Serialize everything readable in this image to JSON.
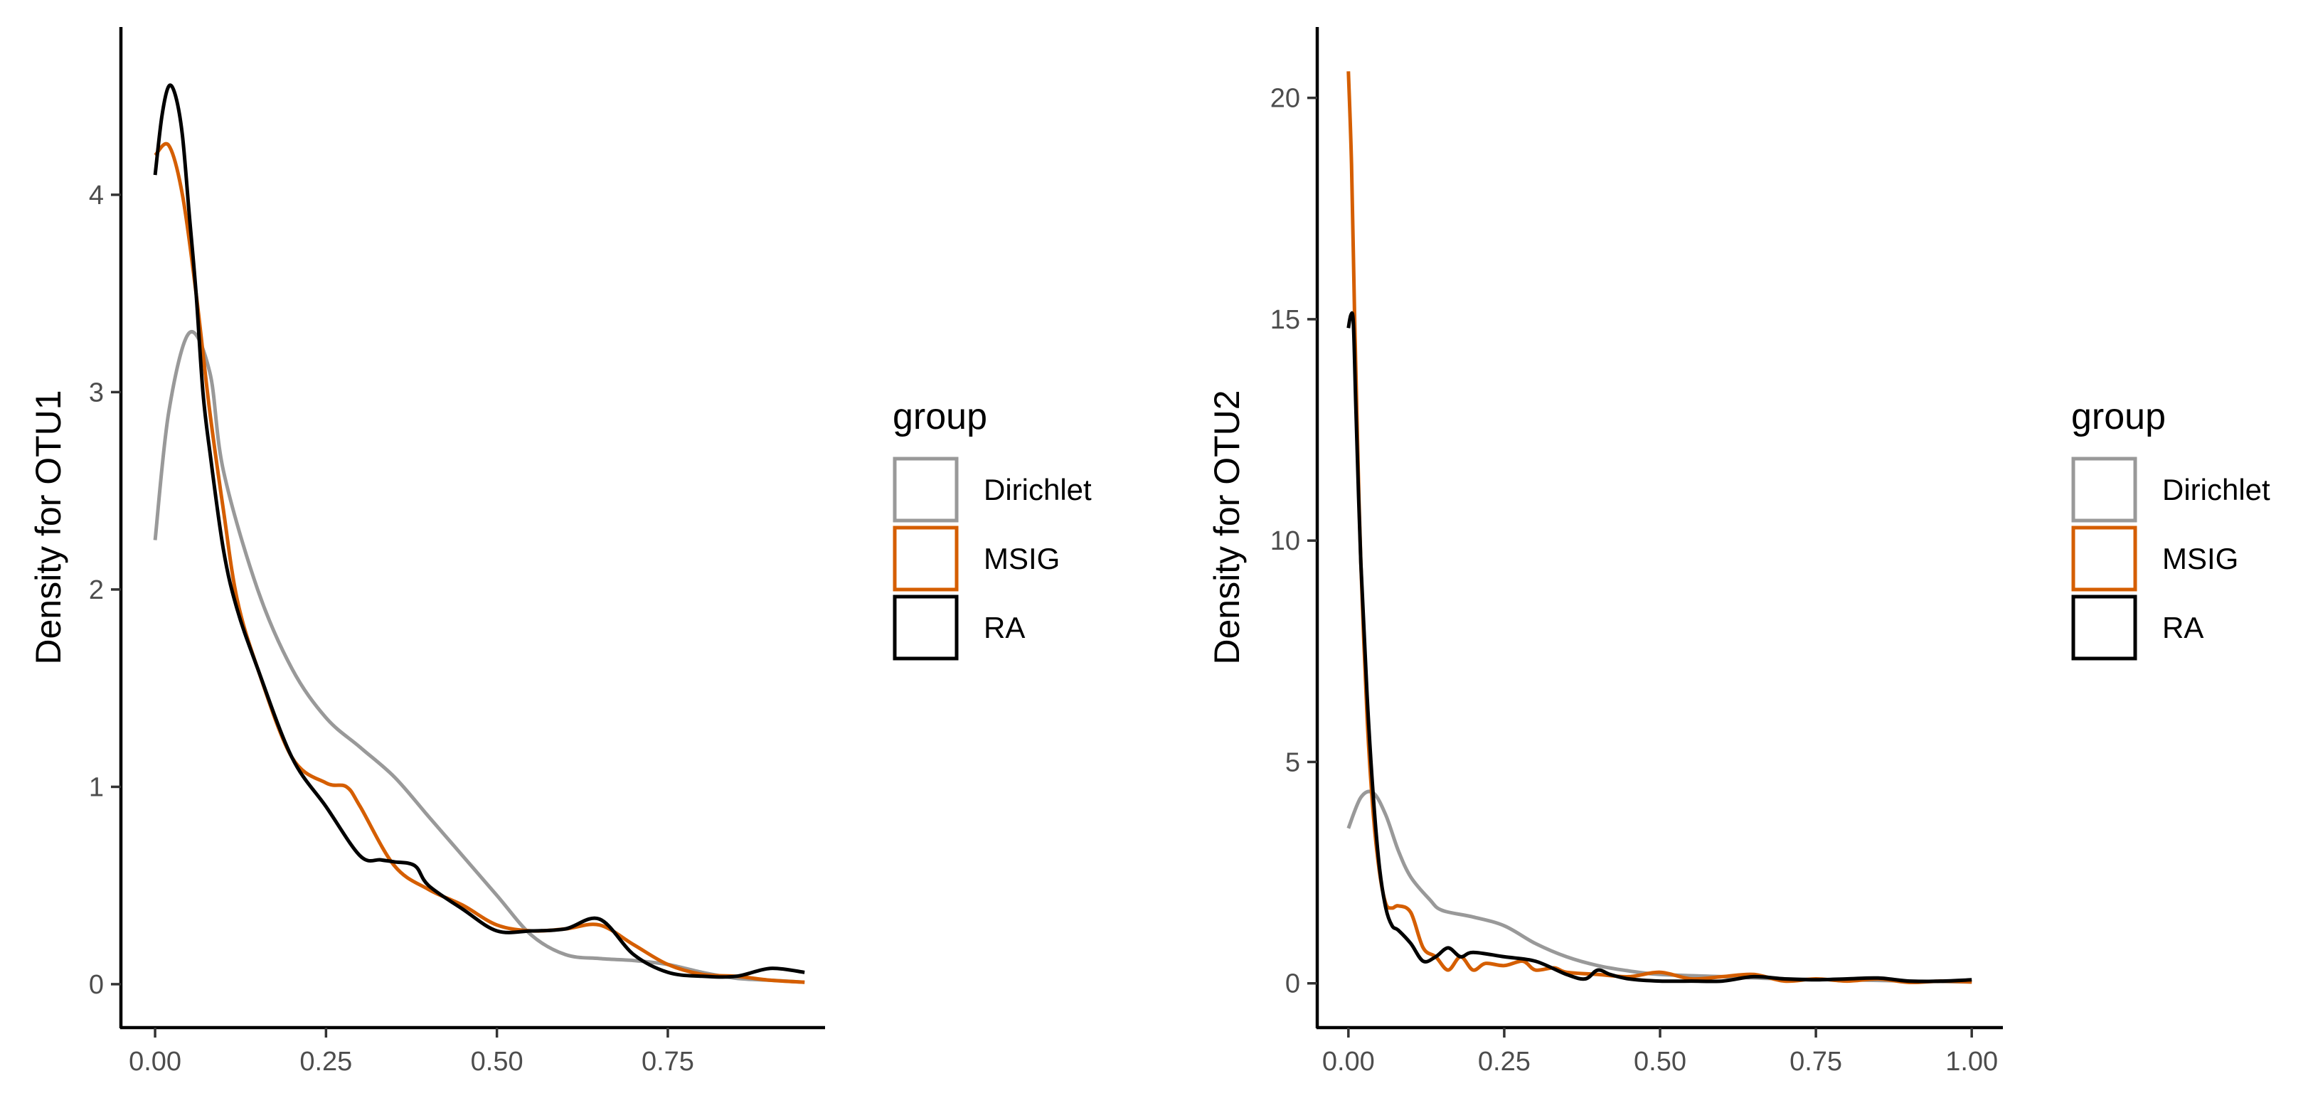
{
  "chart_data": [
    {
      "type": "line",
      "title": "",
      "xlabel": "",
      "ylabel": "Density for OTU1",
      "xlim": [
        -0.05,
        0.98
      ],
      "ylim": [
        -0.22,
        4.85
      ],
      "xticks": [
        0.0,
        0.25,
        0.5,
        0.75
      ],
      "xtick_labels": [
        "0.00",
        "0.25",
        "0.50",
        "0.75"
      ],
      "yticks": [
        0,
        1,
        2,
        3,
        4
      ],
      "ytick_labels": [
        "0",
        "1",
        "2",
        "3",
        "4"
      ],
      "grid": false,
      "legend": {
        "title": "group",
        "position": "right",
        "entries": [
          "Dirichlet",
          "MSIG",
          "RA"
        ]
      },
      "series": [
        {
          "name": "Dirichlet",
          "color": "#999999",
          "x": [
            0.0,
            0.02,
            0.05,
            0.08,
            0.1,
            0.15,
            0.2,
            0.25,
            0.3,
            0.35,
            0.4,
            0.45,
            0.5,
            0.55,
            0.6,
            0.65,
            0.7,
            0.75,
            0.8,
            0.85,
            0.9,
            0.95
          ],
          "y": [
            2.25,
            2.9,
            3.3,
            3.1,
            2.6,
            2.0,
            1.6,
            1.35,
            1.2,
            1.05,
            0.85,
            0.65,
            0.45,
            0.25,
            0.15,
            0.13,
            0.12,
            0.1,
            0.06,
            0.03,
            0.02,
            0.01
          ]
        },
        {
          "name": "MSIG",
          "color": "#d55e00",
          "x": [
            0.0,
            0.02,
            0.04,
            0.06,
            0.08,
            0.1,
            0.12,
            0.15,
            0.2,
            0.25,
            0.28,
            0.3,
            0.35,
            0.4,
            0.45,
            0.5,
            0.55,
            0.6,
            0.65,
            0.7,
            0.75,
            0.8,
            0.85,
            0.9,
            0.95
          ],
          "y": [
            4.2,
            4.25,
            4.0,
            3.5,
            2.9,
            2.4,
            1.95,
            1.6,
            1.15,
            1.02,
            1.0,
            0.9,
            0.6,
            0.48,
            0.4,
            0.3,
            0.27,
            0.28,
            0.3,
            0.2,
            0.1,
            0.05,
            0.04,
            0.02,
            0.01
          ]
        },
        {
          "name": "RA",
          "color": "#000000",
          "x": [
            0.0,
            0.01,
            0.02,
            0.03,
            0.04,
            0.05,
            0.06,
            0.07,
            0.08,
            0.1,
            0.12,
            0.15,
            0.2,
            0.25,
            0.3,
            0.33,
            0.35,
            0.38,
            0.4,
            0.45,
            0.5,
            0.55,
            0.6,
            0.65,
            0.7,
            0.75,
            0.8,
            0.85,
            0.9,
            0.95
          ],
          "y": [
            4.1,
            4.4,
            4.55,
            4.5,
            4.3,
            3.9,
            3.5,
            3.0,
            2.7,
            2.2,
            1.9,
            1.6,
            1.15,
            0.9,
            0.65,
            0.63,
            0.62,
            0.6,
            0.5,
            0.38,
            0.27,
            0.27,
            0.28,
            0.33,
            0.15,
            0.06,
            0.04,
            0.04,
            0.08,
            0.06
          ]
        }
      ]
    },
    {
      "type": "line",
      "title": "",
      "xlabel": "",
      "ylabel": "Density for OTU2",
      "xlim": [
        -0.05,
        1.05
      ],
      "ylim": [
        -1.0,
        21.6
      ],
      "xticks": [
        0.0,
        0.25,
        0.5,
        0.75,
        1.0
      ],
      "xtick_labels": [
        "0.00",
        "0.25",
        "0.50",
        "0.75",
        "1.00"
      ],
      "yticks": [
        0,
        5,
        10,
        15,
        20
      ],
      "ytick_labels": [
        "0",
        "5",
        "10",
        "15",
        "20"
      ],
      "grid": false,
      "legend": {
        "title": "group",
        "position": "right",
        "entries": [
          "Dirichlet",
          "MSIG",
          "RA"
        ]
      },
      "series": [
        {
          "name": "Dirichlet",
          "color": "#999999",
          "x": [
            0.0,
            0.02,
            0.04,
            0.06,
            0.08,
            0.1,
            0.13,
            0.15,
            0.2,
            0.25,
            0.3,
            0.35,
            0.4,
            0.45,
            0.5,
            0.6,
            0.7,
            0.8,
            0.9,
            1.0
          ],
          "y": [
            3.5,
            4.2,
            4.3,
            3.8,
            3.0,
            2.4,
            1.9,
            1.65,
            1.5,
            1.3,
            0.9,
            0.6,
            0.4,
            0.28,
            0.2,
            0.15,
            0.1,
            0.08,
            0.05,
            0.03
          ]
        },
        {
          "name": "MSIG",
          "color": "#d55e00",
          "x": [
            0.0,
            0.005,
            0.01,
            0.015,
            0.02,
            0.03,
            0.04,
            0.05,
            0.06,
            0.07,
            0.08,
            0.1,
            0.12,
            0.14,
            0.16,
            0.18,
            0.2,
            0.22,
            0.25,
            0.28,
            0.3,
            0.33,
            0.35,
            0.4,
            0.45,
            0.5,
            0.55,
            0.6,
            0.65,
            0.7,
            0.75,
            0.8,
            0.85,
            0.9,
            0.95,
            1.0
          ],
          "y": [
            20.6,
            18.5,
            15.0,
            12.0,
            9.5,
            6.0,
            3.8,
            2.5,
            1.8,
            1.7,
            1.75,
            1.6,
            0.8,
            0.6,
            0.3,
            0.6,
            0.3,
            0.45,
            0.4,
            0.5,
            0.3,
            0.35,
            0.25,
            0.2,
            0.15,
            0.25,
            0.1,
            0.15,
            0.2,
            0.05,
            0.1,
            0.05,
            0.1,
            0.02,
            0.05,
            0.03
          ]
        },
        {
          "name": "RA",
          "color": "#000000",
          "x": [
            0.0,
            0.004,
            0.008,
            0.012,
            0.02,
            0.03,
            0.04,
            0.05,
            0.06,
            0.07,
            0.08,
            0.1,
            0.12,
            0.14,
            0.16,
            0.18,
            0.2,
            0.25,
            0.3,
            0.35,
            0.38,
            0.4,
            0.42,
            0.45,
            0.5,
            0.55,
            0.6,
            0.65,
            0.7,
            0.75,
            0.8,
            0.85,
            0.9,
            0.95,
            1.0
          ],
          "y": [
            14.8,
            15.1,
            14.9,
            13.0,
            9.5,
            6.5,
            4.2,
            2.6,
            1.7,
            1.3,
            1.2,
            0.9,
            0.5,
            0.6,
            0.8,
            0.6,
            0.7,
            0.6,
            0.5,
            0.2,
            0.1,
            0.3,
            0.2,
            0.1,
            0.05,
            0.05,
            0.05,
            0.15,
            0.1,
            0.08,
            0.1,
            0.12,
            0.05,
            0.05,
            0.08
          ]
        }
      ]
    }
  ]
}
